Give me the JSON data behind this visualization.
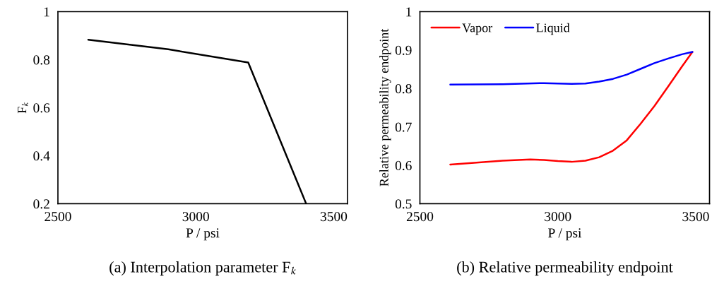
{
  "chart_data": [
    {
      "type": "line",
      "title": "(a) Interpolation parameter F$_{k}$",
      "xlabel": "P / psi",
      "ylabel": "F$_{k}$",
      "xlim": [
        2500,
        3550
      ],
      "xticks": [
        2500,
        3000,
        3500
      ],
      "ylim": [
        0.2,
        1
      ],
      "yticks": [
        0.2,
        0.4,
        0.6,
        0.8,
        1
      ],
      "grid": false,
      "legend": false,
      "series": [
        {
          "color": "#000000",
          "x": [
            2610,
            2900,
            3190,
            3400
          ],
          "values": [
            0.883,
            0.843,
            0.788,
            0.2
          ]
        }
      ]
    },
    {
      "type": "line",
      "title": "(b) Relative permeability endpoint",
      "xlabel": "P / psi",
      "ylabel": "Relative permeability endpoint",
      "xlim": [
        2500,
        3550
      ],
      "xticks": [
        2500,
        3000,
        3500
      ],
      "ylim": [
        0.5,
        1
      ],
      "yticks": [
        0.5,
        0.6,
        0.7,
        0.8,
        0.9,
        1
      ],
      "grid": false,
      "legend": "top left",
      "series": [
        {
          "name": "Vapor",
          "color": "#ff0000",
          "x": [
            2610,
            2800,
            2900,
            2950,
            3000,
            3050,
            3100,
            3150,
            3200,
            3250,
            3300,
            3350,
            3400,
            3450,
            3488
          ],
          "values": [
            0.602,
            0.612,
            0.615,
            0.614,
            0.611,
            0.609,
            0.612,
            0.621,
            0.638,
            0.665,
            0.708,
            0.754,
            0.805,
            0.857,
            0.895
          ]
        },
        {
          "name": "Liquid",
          "color": "#0000ff",
          "x": [
            2610,
            2800,
            2950,
            3050,
            3100,
            3150,
            3200,
            3250,
            3300,
            3350,
            3400,
            3450,
            3488
          ],
          "values": [
            0.81,
            0.811,
            0.814,
            0.812,
            0.813,
            0.818,
            0.825,
            0.836,
            0.851,
            0.866,
            0.878,
            0.889,
            0.895
          ]
        }
      ]
    }
  ]
}
